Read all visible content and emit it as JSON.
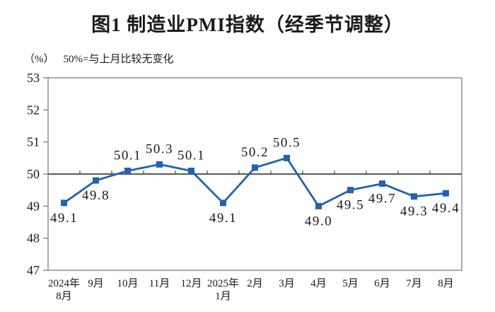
{
  "chart": {
    "title": "图1 制造业PMI指数（经季节调整）",
    "unit_label": "（%）",
    "note": "50%=与上月比较无变化"
  },
  "chart_data": {
    "type": "line",
    "title": "图1 制造业PMI指数（经季节调整）",
    "subtitle_note": "50%=与上月比较无变化",
    "ylabel": "（%）",
    "categories": [
      "2024年\n8月",
      "9月",
      "10月",
      "11月",
      "12月",
      "2025年\n1月",
      "2月",
      "3月",
      "4月",
      "5月",
      "6月",
      "7月",
      "8月"
    ],
    "values": [
      49.1,
      49.8,
      50.1,
      50.3,
      50.1,
      49.1,
      50.2,
      50.5,
      49.0,
      49.5,
      49.7,
      49.3,
      49.4
    ],
    "labels": [
      "49.1",
      "49.8",
      "50.1",
      "50.3",
      "50.1",
      "49.1",
      "50.2",
      "50.5",
      "49.0",
      "49.5",
      "49.7",
      "49.3",
      "49.4"
    ],
    "ylim": [
      47,
      53
    ],
    "y_ticks": [
      47,
      48,
      49,
      50,
      51,
      52,
      53
    ],
    "ref_line": 50,
    "grid": false,
    "legend": "none",
    "line_color": "#2262af",
    "marker": "square",
    "axis_color": "#7f7f7f",
    "ref_line_color": "#595959",
    "text_color": "#1a1a1a"
  }
}
